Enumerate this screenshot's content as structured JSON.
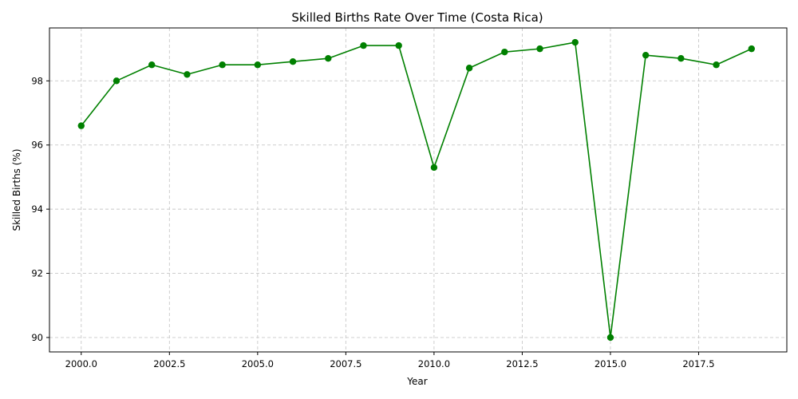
{
  "chart_data": {
    "type": "line",
    "title": "Skilled Births Rate Over Time (Costa Rica)",
    "xlabel": "Year",
    "ylabel": "Skilled Births (%)",
    "xlim": [
      1999.1,
      2020.0
    ],
    "ylim": [
      89.55,
      99.65
    ],
    "xticks": [
      2000.0,
      2002.5,
      2005.0,
      2007.5,
      2010.0,
      2012.5,
      2015.0,
      2017.5
    ],
    "xtick_labels": [
      "2000.0",
      "2002.5",
      "2005.0",
      "2007.5",
      "2010.0",
      "2012.5",
      "2015.0",
      "2017.5"
    ],
    "yticks": [
      90,
      92,
      94,
      96,
      98
    ],
    "ytick_labels": [
      "90",
      "92",
      "94",
      "96",
      "98"
    ],
    "grid": true,
    "line_color": "#008000",
    "series": [
      {
        "x": [
          2000,
          2001,
          2002,
          2003,
          2004,
          2005,
          2006,
          2007,
          2008,
          2009,
          2010,
          2011,
          2012,
          2013,
          2014,
          2015,
          2016,
          2017,
          2018,
          2019
        ],
        "values": [
          96.6,
          98.0,
          98.5,
          98.2,
          98.5,
          98.5,
          98.6,
          98.7,
          99.1,
          99.1,
          95.3,
          98.4,
          98.9,
          99.0,
          99.2,
          90.0,
          98.8,
          98.7,
          98.5,
          99.0
        ]
      }
    ]
  }
}
